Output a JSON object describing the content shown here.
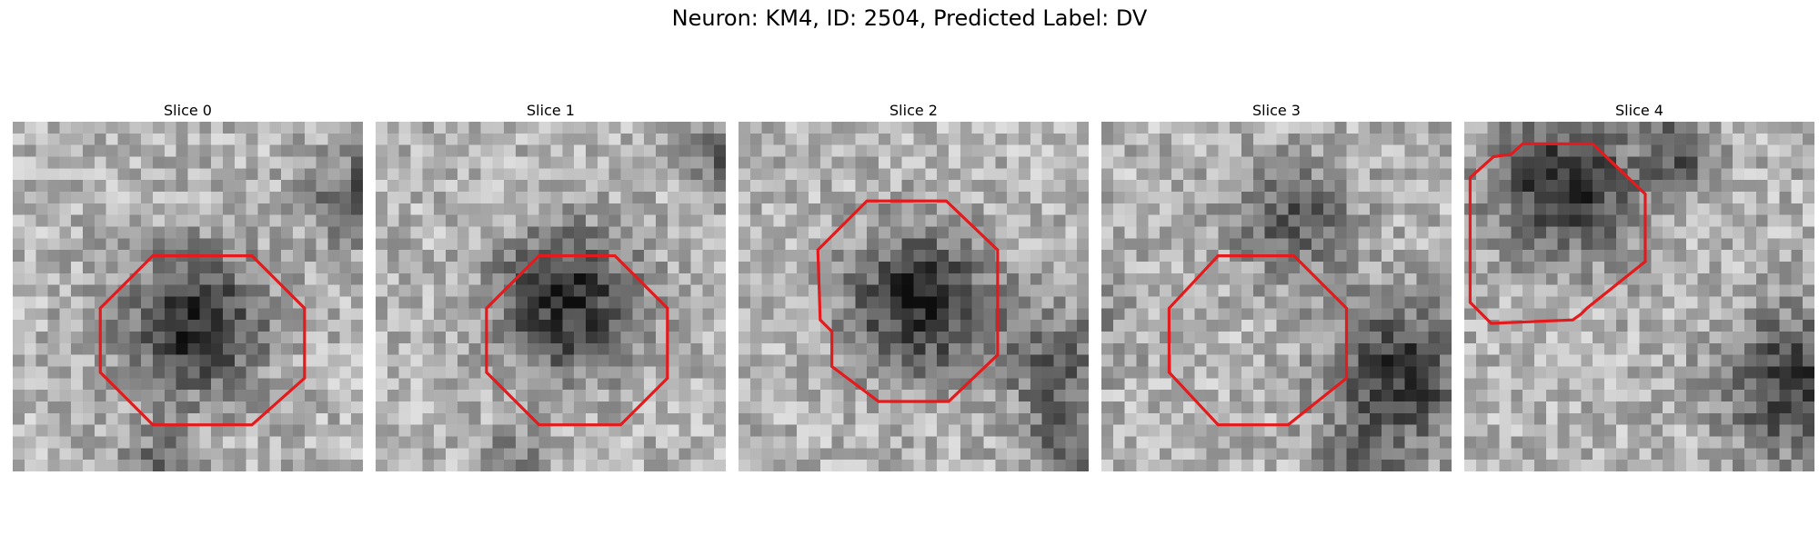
{
  "title": "Neuron: KM4, ID: 2504, Predicted Label: DV",
  "contour_color": "#e41a1c",
  "panels": [
    {
      "title": "Slice 0"
    },
    {
      "title": "Slice 1"
    },
    {
      "title": "Slice 2"
    },
    {
      "title": "Slice 3"
    },
    {
      "title": "Slice 4"
    }
  ]
}
